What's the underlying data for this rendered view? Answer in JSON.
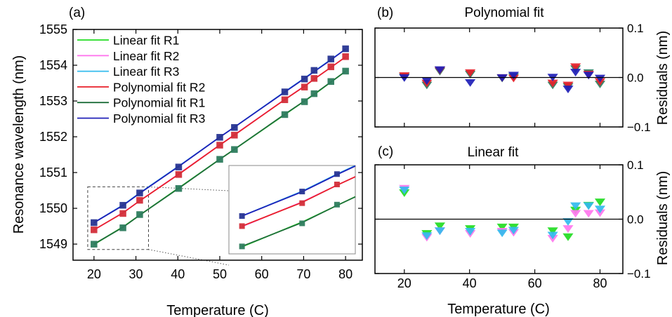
{
  "chart_data": [
    {
      "panel_label": "(a)",
      "type": "line",
      "xlabel": "Temperature (C)",
      "ylabel": "Resonance wavelength (nm)",
      "xlim": [
        15,
        84
      ],
      "ylim": [
        1548.55,
        1555
      ],
      "xticks": [
        20,
        30,
        40,
        50,
        60,
        70,
        80
      ],
      "yticks": [
        1549,
        1550,
        1551,
        1552,
        1553,
        1554,
        1555
      ],
      "x": [
        20,
        26.9,
        30.9,
        40.2,
        50,
        53.5,
        65.5,
        70.2,
        72.5,
        76.5,
        80
      ],
      "marker_series": [
        {
          "name": "R1",
          "color": "#2e7d5e",
          "values": [
            1548.998,
            1549.455,
            1549.825,
            1550.555,
            1551.37,
            1551.645,
            1552.62,
            1552.98,
            1553.205,
            1553.545,
            1553.835
          ]
        },
        {
          "name": "R2",
          "color": "#d32f3a",
          "values": [
            1549.4,
            1549.855,
            1550.225,
            1550.945,
            1551.765,
            1552.045,
            1553.035,
            1553.39,
            1553.63,
            1553.955,
            1554.24
          ]
        },
        {
          "name": "R3",
          "color": "#283593",
          "values": [
            1549.6,
            1550.085,
            1550.43,
            1551.155,
            1551.985,
            1552.26,
            1553.255,
            1553.615,
            1553.855,
            1554.175,
            1554.46
          ]
        }
      ],
      "series": [
        {
          "name": "Linear fit R1",
          "color": "#22dd22",
          "values": [
            1548.99,
            1549.48,
            1549.81,
            1550.57,
            1551.37,
            1551.65,
            1552.62,
            1553.0,
            1553.18,
            1553.53,
            1553.83
          ]
        },
        {
          "name": "Linear fit R2",
          "color": "#ff77ee",
          "values": [
            1549.39,
            1549.88,
            1550.21,
            1550.96,
            1551.77,
            1552.06,
            1553.04,
            1553.42,
            1553.61,
            1553.94,
            1554.23
          ]
        },
        {
          "name": "Linear fit R3",
          "color": "#33bbee",
          "values": [
            1549.6,
            1550.09,
            1550.43,
            1551.18,
            1551.99,
            1552.27,
            1553.26,
            1553.64,
            1553.83,
            1554.16,
            1554.45
          ]
        },
        {
          "name": "Polynomial fit R2",
          "color": "#e8202a",
          "values": [
            1549.4,
            1549.87,
            1550.21,
            1550.95,
            1551.77,
            1552.05,
            1553.04,
            1553.41,
            1553.61,
            1553.94,
            1554.23
          ]
        },
        {
          "name": "Polynomial fit R1",
          "color": "#1f6e3a",
          "values": [
            1549.0,
            1549.47,
            1549.81,
            1550.56,
            1551.37,
            1551.65,
            1552.63,
            1553.0,
            1553.19,
            1553.53,
            1553.83
          ]
        },
        {
          "name": "Polynomial fit R3",
          "color": "#1f1fb8",
          "values": [
            1549.6,
            1550.08,
            1550.42,
            1551.17,
            1551.99,
            1552.27,
            1553.25,
            1553.63,
            1553.82,
            1554.15,
            1554.45
          ]
        }
      ],
      "legend": "top-left",
      "inset": {
        "xlim": [
          18.5,
          33
        ],
        "ylim": [
          1548.85,
          1550.6
        ],
        "zoom_region": "dashed box"
      }
    },
    {
      "panel_label": "(b)",
      "title": "Polynomial fit",
      "type": "scatter",
      "ylabel": "Residuals (nm)",
      "xlim": [
        11,
        87
      ],
      "ylim": [
        -0.1,
        0.1
      ],
      "yticks": [
        -0.1,
        0.0,
        0.1
      ],
      "ytick_labels": [
        "−0.1",
        "0.0",
        "0.1"
      ],
      "x": [
        20,
        26.9,
        30.9,
        40.2,
        50,
        53.5,
        65.5,
        70.2,
        72.5,
        76.5,
        80
      ],
      "series": [
        {
          "name": "R1",
          "color": "#2e7d5e",
          "values": [
            0.001,
            -0.016,
            0.012,
            0.006,
            -0.002,
            0.001,
            -0.016,
            -0.019,
            0.017,
            0.009,
            -0.014
          ]
        },
        {
          "name": "R2",
          "color": "#e8202a",
          "values": [
            0.003,
            -0.012,
            0.014,
            0.009,
            -0.001,
            -0.002,
            -0.012,
            -0.016,
            0.021,
            0.006,
            -0.009
          ]
        },
        {
          "name": "R3",
          "color": "#1f1fb8",
          "values": [
            -0.001,
            -0.007,
            0.015,
            -0.011,
            -0.001,
            0.004,
            0.0,
            -0.024,
            0.01,
            0.004,
            -0.002
          ]
        }
      ],
      "zero_line": true,
      "marker": "down-triangle"
    },
    {
      "panel_label": "(c)",
      "title": "Linear fit",
      "type": "scatter",
      "xlabel": "Temperature (C)",
      "ylabel": "Residuals (nm)",
      "xlim": [
        11,
        87
      ],
      "ylim": [
        -0.1,
        0.1
      ],
      "xticks": [
        20,
        40,
        60,
        80
      ],
      "yticks": [
        -0.1,
        0.0,
        0.1
      ],
      "ytick_labels": [
        "−0.1",
        "0.0",
        "0.1"
      ],
      "x": [
        20,
        26.9,
        30.9,
        40.2,
        50,
        53.5,
        65.5,
        70.2,
        72.5,
        76.5,
        80
      ],
      "series": [
        {
          "name": "Linear fit R1",
          "color": "#22dd22",
          "values": [
            0.048,
            -0.027,
            -0.013,
            -0.018,
            -0.015,
            -0.015,
            -0.022,
            -0.033,
            0.016,
            0.025,
            0.031
          ]
        },
        {
          "name": "Linear fit R2",
          "color": "#ff77ee",
          "values": [
            0.056,
            -0.034,
            -0.022,
            -0.027,
            -0.023,
            -0.025,
            -0.036,
            -0.018,
            0.01,
            0.01,
            0.011
          ]
        },
        {
          "name": "Linear fit R3",
          "color": "#33bbee",
          "values": [
            0.053,
            -0.031,
            -0.022,
            -0.023,
            -0.026,
            -0.021,
            -0.03,
            -0.005,
            0.024,
            0.024,
            0.018
          ]
        }
      ],
      "zero_line": true,
      "marker": "down-triangle"
    }
  ]
}
